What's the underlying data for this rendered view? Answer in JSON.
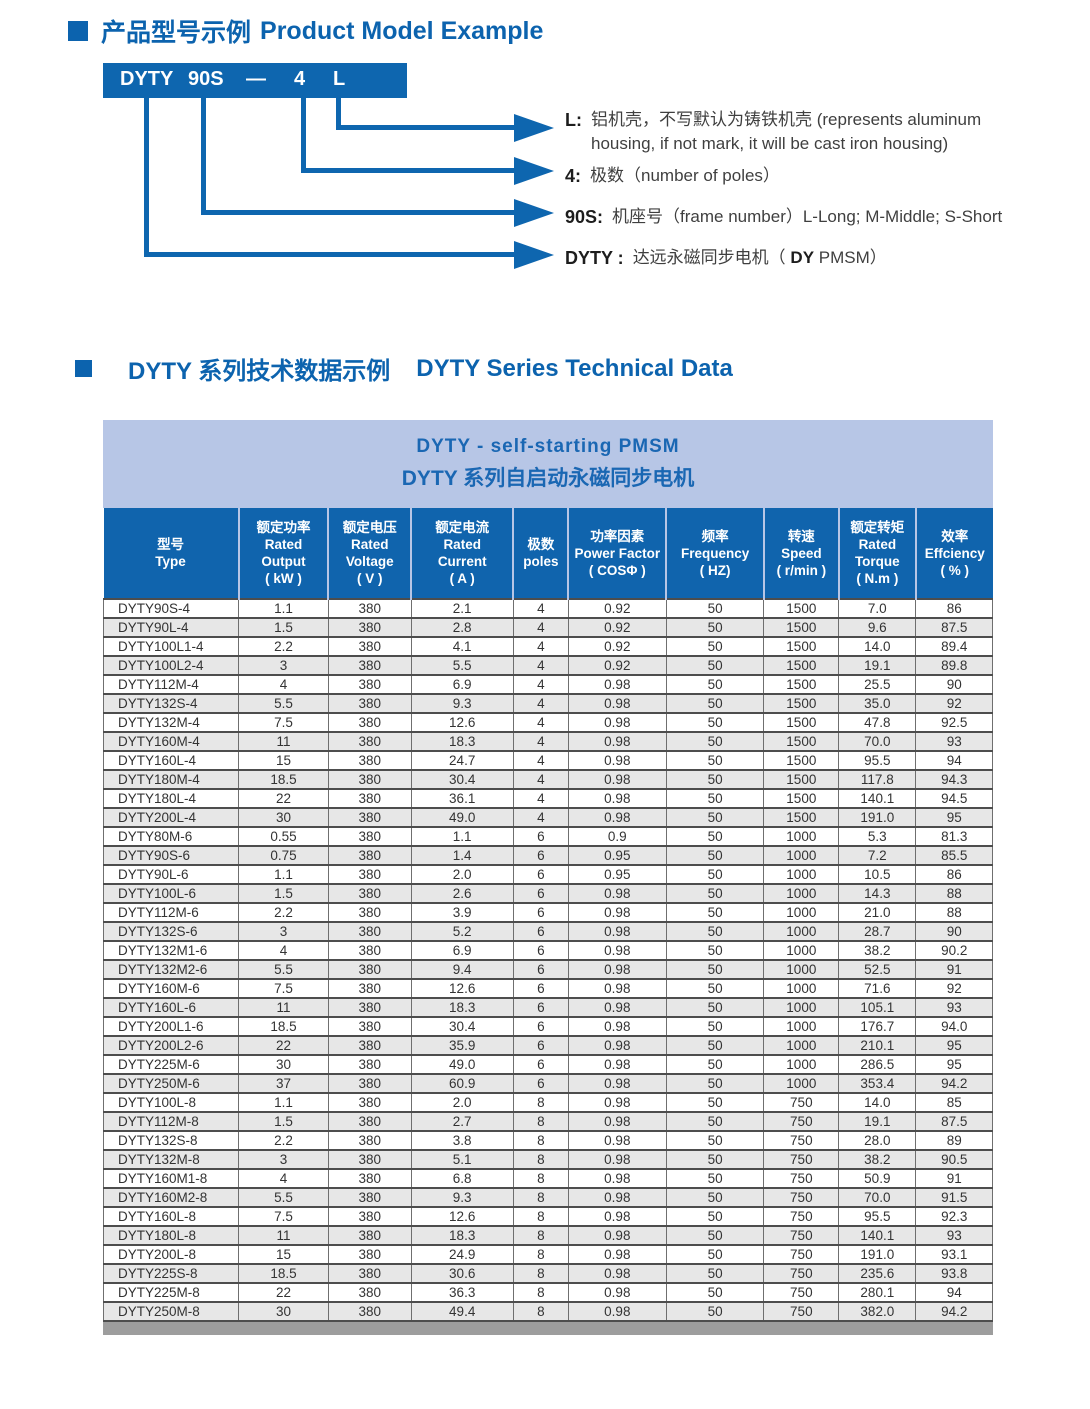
{
  "colors": {
    "primary_blue": "#0e66af",
    "header_blue": "#1064ad",
    "band_blue": "#b7c6e6",
    "row_gray": "#e7e7e7",
    "bottom_bar_gray": "#9d9d9d"
  },
  "section1": {
    "title_zh": "产品型号示例",
    "title_en": "Product Model Example",
    "model": {
      "parts": [
        "DYTY",
        "90S",
        "—",
        "4",
        "L"
      ]
    },
    "callouts": [
      {
        "label": "L:",
        "lines": [
          "铝机壳，不写默认为铸铁机壳 (represents aluminum",
          "housing, if not mark, it will be cast iron housing)"
        ]
      },
      {
        "label": "4:",
        "text": "极数（number of poles）"
      },
      {
        "label": "90S:",
        "text": "机座号（frame number）L-Long; M-Middle; S-Short"
      },
      {
        "label": "DYTY :",
        "pre": "达远永磁同步电机（ ",
        "strong": "DY",
        "post": "  PMSM）"
      }
    ]
  },
  "section2": {
    "title_zh": "DYTY 系列技术数据示例",
    "title_en": "DYTY Series Technical Data",
    "table": {
      "title_line1": "DYTY - self-starting PMSM",
      "title_line2": "DYTY 系列自启动永磁同步电机",
      "columns": [
        {
          "lines": [
            "型号",
            "Type"
          ],
          "width": 15.2
        },
        {
          "lines": [
            "额定功率",
            "Rated",
            "Output",
            "( kW )"
          ],
          "width": 10.1
        },
        {
          "lines": [
            "额定电压",
            "Rated",
            "Voltage",
            "( V )"
          ],
          "width": 9.3
        },
        {
          "lines": [
            "额定电流",
            "Rated",
            "Current",
            "( A )"
          ],
          "width": 11.5
        },
        {
          "lines": [
            "极数",
            "poles"
          ],
          "width": 6.2
        },
        {
          "lines": [
            "功率因素",
            "Power Factor",
            "( COSΦ )"
          ],
          "width": 11.0
        },
        {
          "lines": [
            "频率",
            "Frequency",
            "( HZ)"
          ],
          "width": 11.0
        },
        {
          "lines": [
            "转速",
            "Speed",
            "( r/min )"
          ],
          "width": 8.4
        },
        {
          "lines": [
            "额定转矩",
            "Rated",
            "Torque",
            "( N.m )"
          ],
          "width": 8.7
        },
        {
          "lines": [
            "效率",
            "Effciency",
            "( % )"
          ],
          "width": 8.6
        }
      ],
      "rows": [
        [
          "DYTY90S-4",
          "1.1",
          "380",
          "2.1",
          "4",
          "0.92",
          "50",
          "1500",
          "7.0",
          "86"
        ],
        [
          "DYTY90L-4",
          "1.5",
          "380",
          "2.8",
          "4",
          "0.92",
          "50",
          "1500",
          "9.6",
          "87.5"
        ],
        [
          "DYTY100L1-4",
          "2.2",
          "380",
          "4.1",
          "4",
          "0.92",
          "50",
          "1500",
          "14.0",
          "89.4"
        ],
        [
          "DYTY100L2-4",
          "3",
          "380",
          "5.5",
          "4",
          "0.92",
          "50",
          "1500",
          "19.1",
          "89.8"
        ],
        [
          "DYTY112M-4",
          "4",
          "380",
          "6.9",
          "4",
          "0.98",
          "50",
          "1500",
          "25.5",
          "90"
        ],
        [
          "DYTY132S-4",
          "5.5",
          "380",
          "9.3",
          "4",
          "0.98",
          "50",
          "1500",
          "35.0",
          "92"
        ],
        [
          "DYTY132M-4",
          "7.5",
          "380",
          "12.6",
          "4",
          "0.98",
          "50",
          "1500",
          "47.8",
          "92.5"
        ],
        [
          "DYTY160M-4",
          "11",
          "380",
          "18.3",
          "4",
          "0.98",
          "50",
          "1500",
          "70.0",
          "93"
        ],
        [
          "DYTY160L-4",
          "15",
          "380",
          "24.7",
          "4",
          "0.98",
          "50",
          "1500",
          "95.5",
          "94"
        ],
        [
          "DYTY180M-4",
          "18.5",
          "380",
          "30.4",
          "4",
          "0.98",
          "50",
          "1500",
          "117.8",
          "94.3"
        ],
        [
          "DYTY180L-4",
          "22",
          "380",
          "36.1",
          "4",
          "0.98",
          "50",
          "1500",
          "140.1",
          "94.5"
        ],
        [
          "DYTY200L-4",
          "30",
          "380",
          "49.0",
          "4",
          "0.98",
          "50",
          "1500",
          "191.0",
          "95"
        ],
        [
          "DYTY80M-6",
          "0.55",
          "380",
          "1.1",
          "6",
          "0.9",
          "50",
          "1000",
          "5.3",
          "81.3"
        ],
        [
          "DYTY90S-6",
          "0.75",
          "380",
          "1.4",
          "6",
          "0.95",
          "50",
          "1000",
          "7.2",
          "85.5"
        ],
        [
          "DYTY90L-6",
          "1.1",
          "380",
          "2.0",
          "6",
          "0.95",
          "50",
          "1000",
          "10.5",
          "86"
        ],
        [
          "DYTY100L-6",
          "1.5",
          "380",
          "2.6",
          "6",
          "0.98",
          "50",
          "1000",
          "14.3",
          "88"
        ],
        [
          "DYTY112M-6",
          "2.2",
          "380",
          "3.9",
          "6",
          "0.98",
          "50",
          "1000",
          "21.0",
          "88"
        ],
        [
          "DYTY132S-6",
          "3",
          "380",
          "5.2",
          "6",
          "0.98",
          "50",
          "1000",
          "28.7",
          "90"
        ],
        [
          "DYTY132M1-6",
          "4",
          "380",
          "6.9",
          "6",
          "0.98",
          "50",
          "1000",
          "38.2",
          "90.2"
        ],
        [
          "DYTY132M2-6",
          "5.5",
          "380",
          "9.4",
          "6",
          "0.98",
          "50",
          "1000",
          "52.5",
          "91"
        ],
        [
          "DYTY160M-6",
          "7.5",
          "380",
          "12.6",
          "6",
          "0.98",
          "50",
          "1000",
          "71.6",
          "92"
        ],
        [
          "DYTY160L-6",
          "11",
          "380",
          "18.3",
          "6",
          "0.98",
          "50",
          "1000",
          "105.1",
          "93"
        ],
        [
          "DYTY200L1-6",
          "18.5",
          "380",
          "30.4",
          "6",
          "0.98",
          "50",
          "1000",
          "176.7",
          "94.0"
        ],
        [
          "DYTY200L2-6",
          "22",
          "380",
          "35.9",
          "6",
          "0.98",
          "50",
          "1000",
          "210.1",
          "95"
        ],
        [
          "DYTY225M-6",
          "30",
          "380",
          "49.0",
          "6",
          "0.98",
          "50",
          "1000",
          "286.5",
          "95"
        ],
        [
          "DYTY250M-6",
          "37",
          "380",
          "60.9",
          "6",
          "0.98",
          "50",
          "1000",
          "353.4",
          "94.2"
        ],
        [
          "DYTY100L-8",
          "1.1",
          "380",
          "2.0",
          "8",
          "0.98",
          "50",
          "750",
          "14.0",
          "85"
        ],
        [
          "DYTY112M-8",
          "1.5",
          "380",
          "2.7",
          "8",
          "0.98",
          "50",
          "750",
          "19.1",
          "87.5"
        ],
        [
          "DYTY132S-8",
          "2.2",
          "380",
          "3.8",
          "8",
          "0.98",
          "50",
          "750",
          "28.0",
          "89"
        ],
        [
          "DYTY132M-8",
          "3",
          "380",
          "5.1",
          "8",
          "0.98",
          "50",
          "750",
          "38.2",
          "90.5"
        ],
        [
          "DYTY160M1-8",
          "4",
          "380",
          "6.8",
          "8",
          "0.98",
          "50",
          "750",
          "50.9",
          "91"
        ],
        [
          "DYTY160M2-8",
          "5.5",
          "380",
          "9.3",
          "8",
          "0.98",
          "50",
          "750",
          "70.0",
          "91.5"
        ],
        [
          "DYTY160L-8",
          "7.5",
          "380",
          "12.6",
          "8",
          "0.98",
          "50",
          "750",
          "95.5",
          "92.3"
        ],
        [
          "DYTY180L-8",
          "11",
          "380",
          "18.3",
          "8",
          "0.98",
          "50",
          "750",
          "140.1",
          "93"
        ],
        [
          "DYTY200L-8",
          "15",
          "380",
          "24.9",
          "8",
          "0.98",
          "50",
          "750",
          "191.0",
          "93.1"
        ],
        [
          "DYTY225S-8",
          "18.5",
          "380",
          "30.6",
          "8",
          "0.98",
          "50",
          "750",
          "235.6",
          "93.8"
        ],
        [
          "DYTY225M-8",
          "22",
          "380",
          "36.3",
          "8",
          "0.98",
          "50",
          "750",
          "280.1",
          "94"
        ],
        [
          "DYTY250M-8",
          "30",
          "380",
          "49.4",
          "8",
          "0.98",
          "50",
          "750",
          "382.0",
          "94.2"
        ]
      ]
    }
  }
}
